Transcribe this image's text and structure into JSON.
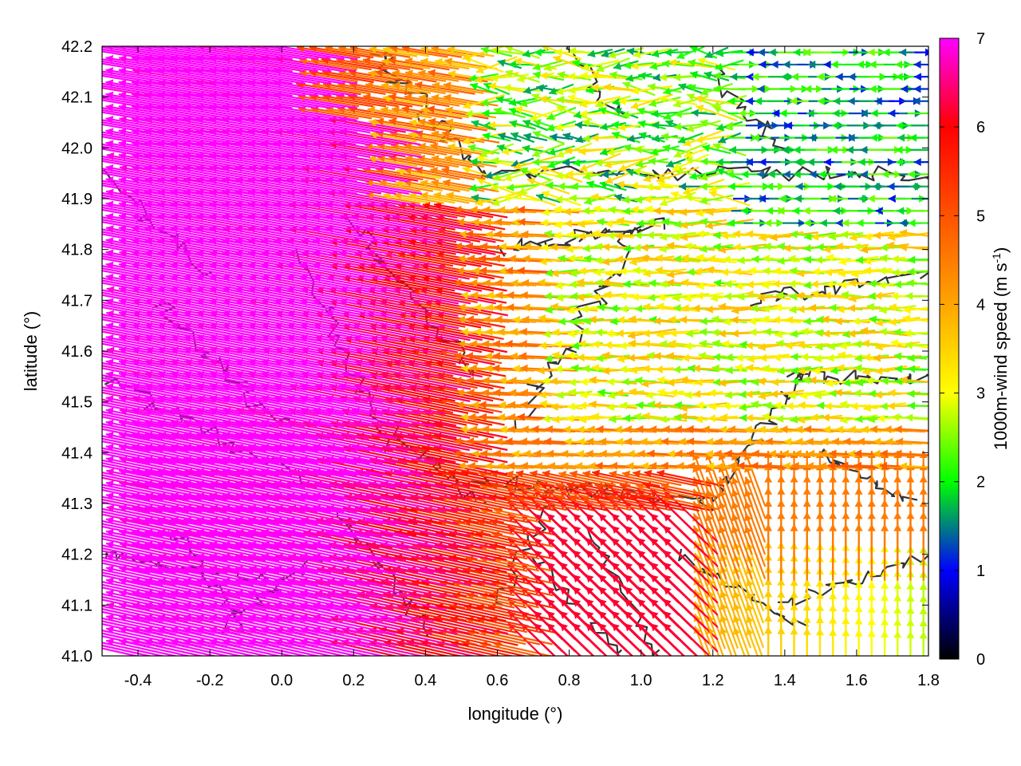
{
  "chart_data": {
    "type": "vector-field",
    "xlabel": "longitude (°)",
    "ylabel": "latitude (°)",
    "colorbar_label_main": "1000m-wind speed (m s",
    "colorbar_label_sup": "-1",
    "colorbar_label_end": ")",
    "xlim": [
      -0.5,
      1.8
    ],
    "ylim": [
      41.0,
      42.2
    ],
    "x_ticks": [
      -0.4,
      -0.2,
      0.0,
      0.2,
      0.4,
      0.6,
      0.8,
      1.0,
      1.2,
      1.4,
      1.6,
      1.8
    ],
    "x_tick_labels": [
      "-0.4",
      "-0.2",
      "0.0",
      "0.2",
      "0.4",
      "0.6",
      "0.8",
      "1.0",
      "1.2",
      "1.4",
      "1.6",
      "1.8"
    ],
    "y_ticks": [
      41.0,
      41.1,
      41.2,
      41.3,
      41.4,
      41.5,
      41.6,
      41.7,
      41.8,
      41.9,
      42.0,
      42.1,
      42.2
    ],
    "y_tick_labels": [
      "41.0",
      "41.1",
      "41.2",
      "41.3",
      "41.4",
      "41.5",
      "41.6",
      "41.7",
      "41.8",
      "41.9",
      "42.0",
      "42.1",
      "42.2"
    ],
    "colorbar_range": [
      0,
      7
    ],
    "colorbar_ticks": [
      0,
      1,
      2,
      3,
      4,
      5,
      6,
      7
    ],
    "colorbar_tick_labels": [
      "0",
      "1",
      "2",
      "3",
      "4",
      "5",
      "6",
      "7"
    ],
    "colormap": [
      {
        "value": 0,
        "color": "#000000"
      },
      {
        "value": 1,
        "color": "#0000ff"
      },
      {
        "value": 1.5,
        "color": "#008080"
      },
      {
        "value": 2,
        "color": "#00ff00"
      },
      {
        "value": 3,
        "color": "#ffff00"
      },
      {
        "value": 4,
        "color": "#ffa500"
      },
      {
        "value": 6,
        "color": "#ff0000"
      },
      {
        "value": 7,
        "color": "#ff00ff"
      }
    ],
    "grid": false,
    "contour_color": "#333333",
    "wind_regions": [
      {
        "region": "west",
        "approx_speed": 7,
        "direction": "from east (westward, slightly north)"
      },
      {
        "region": "south-central",
        "approx_speed": 6,
        "direction": "westward"
      },
      {
        "region": "north-central",
        "approx_speed": 3.5,
        "direction": "westward"
      },
      {
        "region": "north-east",
        "approx_speed": 1.2,
        "direction": "variable, partly eastward"
      },
      {
        "region": "east-central",
        "approx_speed": 2.5,
        "direction": "westward"
      },
      {
        "region": "south-east",
        "approx_speed": 4,
        "direction": "northward"
      }
    ]
  }
}
